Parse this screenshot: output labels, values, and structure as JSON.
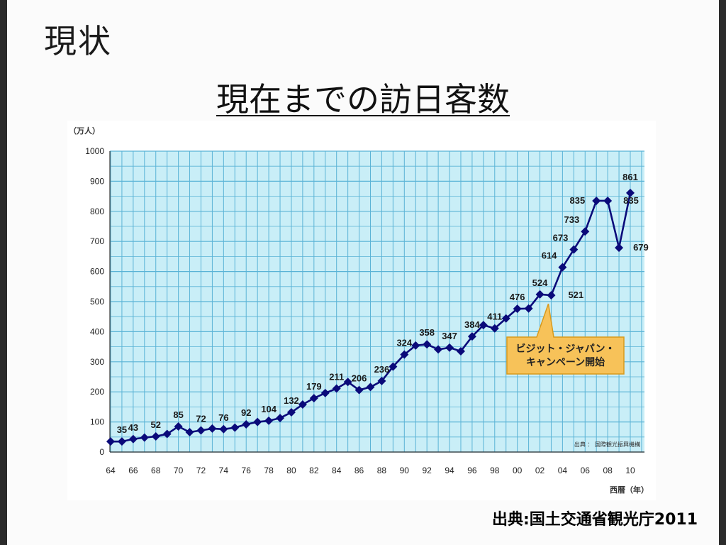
{
  "slide": {
    "title": "現状",
    "subtitle": "現在までの訪日客数",
    "credit": "出典:国土交通省観光庁2011"
  },
  "chart_data": {
    "type": "line",
    "unit_label": "（万人）",
    "xlabel": "西暦（年）",
    "source_note": "出典 ： 国際観光振興機構",
    "ylim": [
      0,
      1000
    ],
    "y_ticks": [
      "0",
      "100",
      "200",
      "300",
      "400",
      "500",
      "600",
      "700",
      "800",
      "900",
      "1000"
    ],
    "x_tick_labels": [
      "64",
      "66",
      "68",
      "70",
      "72",
      "74",
      "76",
      "78",
      "80",
      "82",
      "84",
      "86",
      "88",
      "90",
      "92",
      "94",
      "96",
      "98",
      "00",
      "02",
      "04",
      "06",
      "08",
      "10"
    ],
    "grid": true,
    "x": [
      1964,
      1965,
      1966,
      1967,
      1968,
      1969,
      1970,
      1971,
      1972,
      1973,
      1974,
      1975,
      1976,
      1977,
      1978,
      1979,
      1980,
      1981,
      1982,
      1983,
      1984,
      1985,
      1986,
      1987,
      1988,
      1989,
      1990,
      1991,
      1992,
      1993,
      1994,
      1995,
      1996,
      1997,
      1998,
      1999,
      2000,
      2001,
      2002,
      2003,
      2004,
      2005,
      2006,
      2007,
      2008,
      2009,
      2010
    ],
    "series": [
      {
        "values": [
          35,
          35,
          43,
          48,
          52,
          60,
          85,
          66,
          72,
          78,
          76,
          81,
          92,
          100,
          104,
          113,
          132,
          158,
          179,
          196,
          211,
          233,
          206,
          216,
          236,
          284,
          324,
          354,
          358,
          341,
          347,
          335,
          384,
          422,
          411,
          444,
          476,
          477,
          524,
          521,
          614,
          673,
          733,
          835,
          835,
          679,
          861
        ]
      }
    ],
    "data_labels": [
      {
        "year": 1965,
        "text": "35"
      },
      {
        "year": 1966,
        "text": "43"
      },
      {
        "year": 1968,
        "text": "52"
      },
      {
        "year": 1970,
        "text": "85"
      },
      {
        "year": 1972,
        "text": "72"
      },
      {
        "year": 1974,
        "text": "76"
      },
      {
        "year": 1976,
        "text": "92"
      },
      {
        "year": 1978,
        "text": "104"
      },
      {
        "year": 1980,
        "text": "132"
      },
      {
        "year": 1982,
        "text": "179"
      },
      {
        "year": 1984,
        "text": "211"
      },
      {
        "year": 1986,
        "text": "206"
      },
      {
        "year": 1988,
        "text": "236"
      },
      {
        "year": 1990,
        "text": "324"
      },
      {
        "year": 1992,
        "text": "358"
      },
      {
        "year": 1994,
        "text": "347"
      },
      {
        "year": 1996,
        "text": "384"
      },
      {
        "year": 1998,
        "text": "411"
      },
      {
        "year": 2000,
        "text": "476"
      },
      {
        "year": 2002,
        "text": "524"
      },
      {
        "year": 2003,
        "text": "521"
      },
      {
        "year": 2004,
        "text": "614"
      },
      {
        "year": 2005,
        "text": "673"
      },
      {
        "year": 2006,
        "text": "733"
      },
      {
        "year": 2007,
        "text": "835"
      },
      {
        "year": 2008,
        "text": "835"
      },
      {
        "year": 2009,
        "text": "679"
      },
      {
        "year": 2010,
        "text": "861"
      }
    ],
    "annotation": {
      "lines": [
        "ビジット・ジャパン・",
        "キャンペーン開始"
      ],
      "year": 2003
    },
    "colors": {
      "plot_bg": "#c9eef7",
      "grid": "#5ab3d6",
      "line": "#0a0a7a",
      "callout_fill": "#f7c259",
      "callout_stroke": "#d99a1c"
    }
  }
}
